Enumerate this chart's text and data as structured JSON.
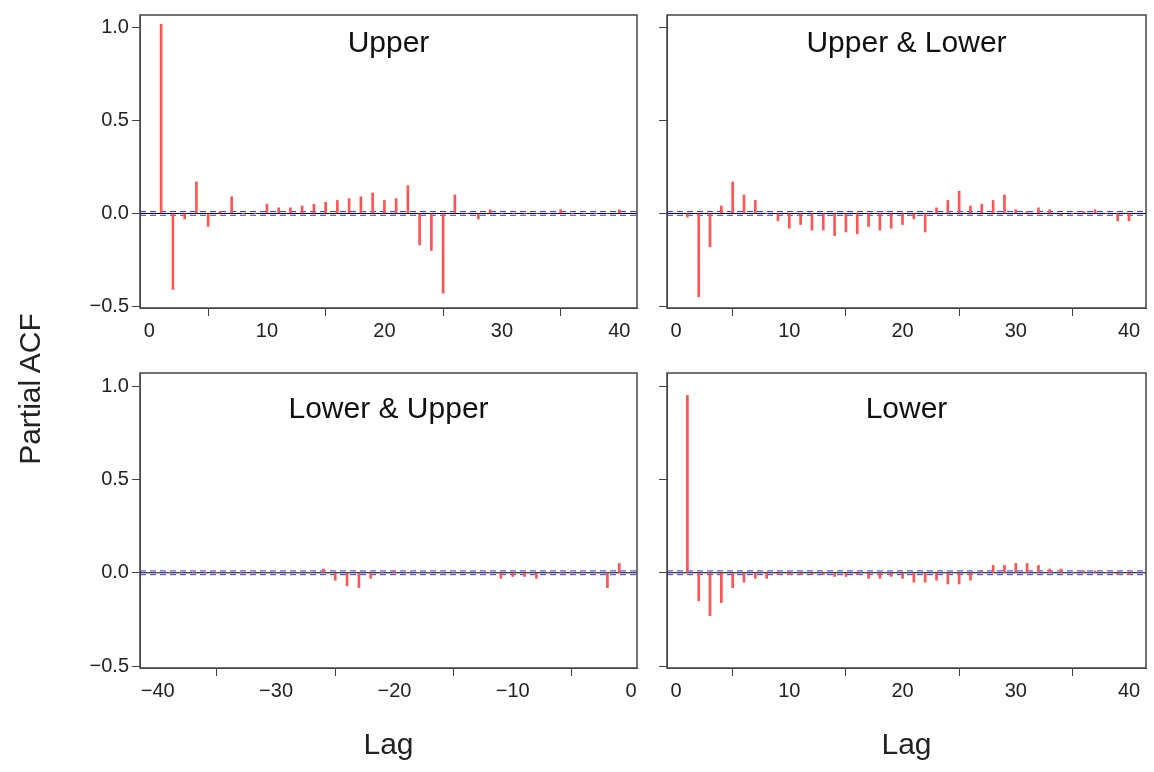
{
  "chart_data": [
    {
      "type": "bar",
      "title": "Upper",
      "ylabel": "Partial ACF",
      "x": [
        1,
        2,
        3,
        4,
        5,
        6,
        7,
        8,
        9,
        10,
        11,
        12,
        13,
        14,
        15,
        16,
        17,
        18,
        19,
        20,
        21,
        22,
        23,
        24,
        25,
        26,
        27,
        28,
        29,
        30,
        31,
        32,
        33,
        34,
        35,
        36,
        37,
        38,
        39,
        40
      ],
      "series": [
        {
          "color": "#ff5555",
          "values": [
            1.02,
            -0.41,
            -0.03,
            0.17,
            -0.07,
            0.01,
            0.09,
            0,
            0,
            0.05,
            0.03,
            0.03,
            0.04,
            0.05,
            0.06,
            0.07,
            0.08,
            0.09,
            0.11,
            0.07,
            0.08,
            0.15,
            -0.17,
            -0.2,
            -0.43,
            0.1,
            0,
            -0.03,
            0.02,
            0,
            0,
            0,
            0,
            0,
            0.02,
            0,
            0,
            0,
            0,
            0.02
          ]
        }
      ],
      "xlim": [
        -0.8,
        41.5
      ],
      "xticks": [
        0,
        10,
        20,
        30,
        40
      ],
      "ylim": [
        -0.51,
        1.07
      ],
      "yticks": [
        {
          "value": -0.5,
          "label": "−0.5"
        },
        {
          "value": 0,
          "label": "0.0"
        },
        {
          "value": 0.5,
          "label": "0.5"
        },
        {
          "value": 1,
          "label": "1.0"
        }
      ],
      "grid": false,
      "ref_lines": [
        {
          "axis": "y",
          "value": 0,
          "color": "#000000",
          "line_style": "solid"
        },
        {
          "axis": "y",
          "value": 0.01,
          "color": "#3333ff",
          "line_style": "dashed"
        },
        {
          "axis": "y",
          "value": -0.01,
          "color": "#3333ff",
          "line_style": "dashed"
        }
      ]
    },
    {
      "type": "bar",
      "title": "Upper & Lower",
      "x": [
        1,
        2,
        3,
        4,
        5,
        6,
        7,
        8,
        9,
        10,
        11,
        12,
        13,
        14,
        15,
        16,
        17,
        18,
        19,
        20,
        21,
        22,
        23,
        24,
        25,
        26,
        27,
        28,
        29,
        30,
        31,
        32,
        33,
        34,
        35,
        36,
        37,
        38,
        39,
        40
      ],
      "series": [
        {
          "color": "#ff5555",
          "values": [
            -0.02,
            -0.45,
            -0.18,
            0.04,
            0.17,
            0.1,
            0.07,
            0,
            -0.04,
            -0.08,
            -0.06,
            -0.09,
            -0.09,
            -0.12,
            -0.1,
            -0.11,
            -0.07,
            -0.09,
            -0.08,
            -0.06,
            -0.03,
            -0.1,
            0.03,
            0.07,
            0.12,
            0.04,
            0.05,
            0.07,
            0.1,
            0.02,
            0.01,
            0.03,
            0.02,
            -0.01,
            0,
            0.01,
            0.02,
            0,
            -0.04,
            -0.04
          ]
        }
      ],
      "xlim": [
        -0.8,
        41.5
      ],
      "xticks": [
        0,
        10,
        20,
        30,
        40
      ],
      "ylim": [
        -0.51,
        1.07
      ],
      "yticks": [
        {
          "value": -0.5,
          "label": null
        },
        {
          "value": 0,
          "label": null
        },
        {
          "value": 0.5,
          "label": null
        },
        {
          "value": 1,
          "label": null
        }
      ],
      "grid": false,
      "tick_labels": "x",
      "ref_lines": [
        {
          "axis": "y",
          "value": 0,
          "color": "#000000",
          "line_style": "solid"
        },
        {
          "axis": "y",
          "value": 0.01,
          "color": "#3333ff",
          "line_style": "dashed"
        },
        {
          "axis": "y",
          "value": -0.01,
          "color": "#3333ff",
          "line_style": "dashed"
        }
      ]
    },
    {
      "type": "bar",
      "title": "Lower & Upper",
      "xlabel": "Lag",
      "x": [
        -40,
        -39,
        -38,
        -37,
        -36,
        -35,
        -34,
        -33,
        -32,
        -31,
        -30,
        -29,
        -28,
        -27,
        -26,
        -25,
        -24,
        -23,
        -22,
        -21,
        -20,
        -19,
        -18,
        -17,
        -16,
        -15,
        -14,
        -13,
        -12,
        -11,
        -10,
        -9,
        -8,
        -7,
        -6,
        -5,
        -4,
        -3,
        -2,
        -1
      ],
      "series": [
        {
          "color": "#ff5555",
          "values": [
            0,
            0,
            0,
            0,
            0,
            0,
            0,
            0,
            0,
            0,
            0,
            0,
            0,
            0,
            0.02,
            -0.04,
            -0.07,
            -0.08,
            -0.03,
            0,
            0.01,
            0,
            0,
            0,
            0,
            0,
            0,
            0,
            0,
            -0.03,
            -0.02,
            -0.02,
            -0.03,
            0,
            0,
            0,
            0,
            0,
            -0.08,
            0.05
          ]
        }
      ],
      "xlim": [
        -41.5,
        0.5
      ],
      "xticks": [
        {
          "value": -40,
          "label": "−40"
        },
        {
          "value": -30,
          "label": "−30"
        },
        {
          "value": -20,
          "label": "−20"
        },
        {
          "value": -10,
          "label": "−10"
        },
        0
      ],
      "ylim": [
        -0.51,
        1.07
      ],
      "yticks": [
        {
          "value": -0.5,
          "label": "−0.5"
        },
        {
          "value": 0,
          "label": "0.0"
        },
        {
          "value": 0.5,
          "label": "0.5"
        },
        {
          "value": 1,
          "label": "1.0"
        }
      ],
      "grid": false,
      "ref_lines": [
        {
          "axis": "y",
          "value": 0,
          "color": "#000000",
          "line_style": "solid"
        },
        {
          "axis": "y",
          "value": 0.01,
          "color": "#3333ff",
          "line_style": "dashed"
        },
        {
          "axis": "y",
          "value": -0.01,
          "color": "#3333ff",
          "line_style": "dashed"
        }
      ]
    },
    {
      "type": "bar",
      "title": "Lower",
      "xlabel": "Lag",
      "x": [
        1,
        2,
        3,
        4,
        5,
        6,
        7,
        8,
        9,
        10,
        11,
        12,
        13,
        14,
        15,
        16,
        17,
        18,
        19,
        20,
        21,
        22,
        23,
        24,
        25,
        26,
        27,
        28,
        29,
        30,
        31,
        32,
        33,
        34,
        35,
        36,
        37,
        38,
        39,
        40
      ],
      "series": [
        {
          "color": "#ff5555",
          "values": [
            0.95,
            -0.15,
            -0.23,
            -0.16,
            -0.08,
            -0.05,
            -0.03,
            -0.03,
            -0.01,
            -0.01,
            -0.01,
            -0.01,
            -0.01,
            -0.02,
            -0.02,
            -0.01,
            -0.03,
            -0.03,
            -0.02,
            -0.03,
            -0.05,
            -0.05,
            -0.04,
            -0.06,
            -0.06,
            -0.04,
            0.01,
            0.04,
            0.04,
            0.05,
            0.05,
            0.04,
            0.02,
            0.02,
            0,
            0.01,
            0.01,
            0,
            -0.01,
            -0.01
          ]
        }
      ],
      "xlim": [
        -0.8,
        41.5
      ],
      "xticks": [
        0,
        10,
        20,
        30,
        40
      ],
      "ylim": [
        -0.51,
        1.07
      ],
      "yticks": [
        {
          "value": -0.5,
          "label": null
        },
        {
          "value": 0,
          "label": null
        },
        {
          "value": 0.5,
          "label": null
        },
        {
          "value": 1,
          "label": null
        }
      ],
      "grid": false,
      "tick_labels": "x",
      "ref_lines": [
        {
          "axis": "y",
          "value": 0,
          "color": "#000000",
          "line_style": "solid"
        },
        {
          "axis": "y",
          "value": 0.01,
          "color": "#3333ff",
          "line_style": "dashed"
        },
        {
          "axis": "y",
          "value": -0.01,
          "color": "#3333ff",
          "line_style": "dashed"
        }
      ]
    }
  ]
}
